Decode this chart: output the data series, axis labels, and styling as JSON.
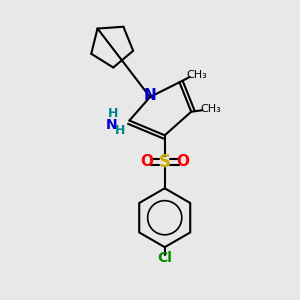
{
  "bg_color": "#e8e8e8",
  "bond_color": "#000000",
  "bond_width": 1.5,
  "atom_colors": {
    "N": "#0000cc",
    "O": "#ff0000",
    "S": "#ccaa00",
    "Cl": "#008800",
    "C": "#000000",
    "H": "#008888",
    "NH2_N": "#0000cc",
    "NH2_H": "#008888"
  },
  "font_size": 9,
  "fig_width": 3.0,
  "fig_height": 3.0,
  "dpi": 100
}
